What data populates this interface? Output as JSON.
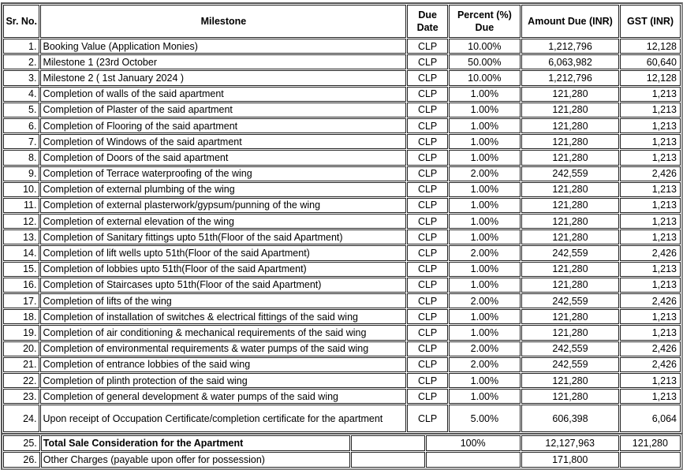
{
  "headers": {
    "sr": "Sr. No.",
    "milestone": "Milestone",
    "due_date": "Due Date",
    "percent": "Percent (%) Due",
    "amount": "Amount Due (INR)",
    "gst": "GST (INR)"
  },
  "rows": [
    {
      "sr": "1.",
      "milestone": "Booking Value (Application Monies)",
      "due": "CLP",
      "percent": "10.00%",
      "amount": "1,212,796",
      "gst": "12,128"
    },
    {
      "sr": "2.",
      "milestone": "Milestone 1 (23rd October",
      "due": "CLP",
      "percent": "50.00%",
      "amount": "6,063,982",
      "gst": "60,640"
    },
    {
      "sr": "3.",
      "milestone": "Milestone 2 ( 1st January 2024 )",
      "due": "CLP",
      "percent": "10.00%",
      "amount": "1,212,796",
      "gst": "12,128"
    },
    {
      "sr": "4.",
      "milestone": "Completion of walls of the said apartment",
      "due": "CLP",
      "percent": "1.00%",
      "amount": "121,280",
      "gst": "1,213"
    },
    {
      "sr": "5.",
      "milestone": "Completion of Plaster of the said apartment",
      "due": "CLP",
      "percent": "1.00%",
      "amount": "121,280",
      "gst": "1,213"
    },
    {
      "sr": "6.",
      "milestone": "Completion of Flooring of the said apartment",
      "due": "CLP",
      "percent": "1.00%",
      "amount": "121,280",
      "gst": "1,213"
    },
    {
      "sr": "7.",
      "milestone": "Completion of Windows of the said apartment",
      "due": "CLP",
      "percent": "1.00%",
      "amount": "121,280",
      "gst": "1,213"
    },
    {
      "sr": "8.",
      "milestone": "Completion of Doors of the said apartment",
      "due": "CLP",
      "percent": "1.00%",
      "amount": "121,280",
      "gst": "1,213"
    },
    {
      "sr": "9.",
      "milestone": "Completion of Terrace waterproofing of the wing",
      "due": "CLP",
      "percent": "2.00%",
      "amount": "242,559",
      "gst": "2,426"
    },
    {
      "sr": "10.",
      "milestone": "Completion of external plumbing of the wing",
      "due": "CLP",
      "percent": "1.00%",
      "amount": "121,280",
      "gst": "1,213"
    },
    {
      "sr": "11.",
      "milestone": "Completion of external plasterwork/gypsum/punning of the wing",
      "due": "CLP",
      "percent": "1.00%",
      "amount": "121,280",
      "gst": "1,213"
    },
    {
      "sr": "12.",
      "milestone": "Completion of external elevation of the wing",
      "due": "CLP",
      "percent": "1.00%",
      "amount": "121,280",
      "gst": "1,213"
    },
    {
      "sr": "13.",
      "milestone": "Completion of Sanitary fittings upto 51th(Floor of the said Apartment)",
      "due": "CLP",
      "percent": "1.00%",
      "amount": "121,280",
      "gst": "1,213"
    },
    {
      "sr": "14.",
      "milestone": "Completion of lift wells upto 51th(Floor of the said Apartment)",
      "due": "CLP",
      "percent": "2.00%",
      "amount": "242,559",
      "gst": "2,426"
    },
    {
      "sr": "15.",
      "milestone": "Completion of lobbies upto 51th(Floor of the said Apartment)",
      "due": "CLP",
      "percent": "1.00%",
      "amount": "121,280",
      "gst": "1,213"
    },
    {
      "sr": "16.",
      "milestone": "Completion of Staircases upto 51th(Floor of the said Apartment)",
      "due": "CLP",
      "percent": "1.00%",
      "amount": "121,280",
      "gst": "1,213"
    },
    {
      "sr": "17.",
      "milestone": "Completion of lifts of the wing",
      "due": "CLP",
      "percent": "2.00%",
      "amount": "242,559",
      "gst": "2,426"
    },
    {
      "sr": "18.",
      "milestone": "Completion of installation of switches & electrical fittings of the said wing",
      "due": "CLP",
      "percent": "1.00%",
      "amount": "121,280",
      "gst": "1,213"
    },
    {
      "sr": "19.",
      "milestone": "Completion of air conditioning & mechanical requirements of the said wing",
      "due": "CLP",
      "percent": "1.00%",
      "amount": "121,280",
      "gst": "1,213"
    },
    {
      "sr": "20.",
      "milestone": "Completion of environmental requirements & water pumps of the said wing",
      "due": "CLP",
      "percent": "2.00%",
      "amount": "242,559",
      "gst": "2,426"
    },
    {
      "sr": "21.",
      "milestone": "Completion of entrance lobbies of the said wing",
      "due": "CLP",
      "percent": "2.00%",
      "amount": "242,559",
      "gst": "2,426"
    },
    {
      "sr": "22.",
      "milestone": "Completion of plinth protection of the said wing",
      "due": "CLP",
      "percent": "1.00%",
      "amount": "121,280",
      "gst": "1,213"
    },
    {
      "sr": "23.",
      "milestone": "Completion of general development & water pumps of the said wing",
      "due": "CLP",
      "percent": "1.00%",
      "amount": "121,280",
      "gst": "1,213"
    },
    {
      "sr": "24.",
      "milestone": "Upon receipt of Occupation Certificate/completion certificate for the apartment",
      "due": "CLP",
      "percent": "5.00%",
      "amount": "606,398",
      "gst": "6,064"
    }
  ],
  "footer": [
    {
      "sr": "25.",
      "label": "Total Sale Consideration for the Apartment",
      "percent": "100%",
      "amount": "12,127,963",
      "gst": "121,280"
    },
    {
      "sr": "26.",
      "label": "Other Charges (payable upon offer for possession)",
      "percent": "",
      "amount": "171,800",
      "gst": ""
    }
  ]
}
